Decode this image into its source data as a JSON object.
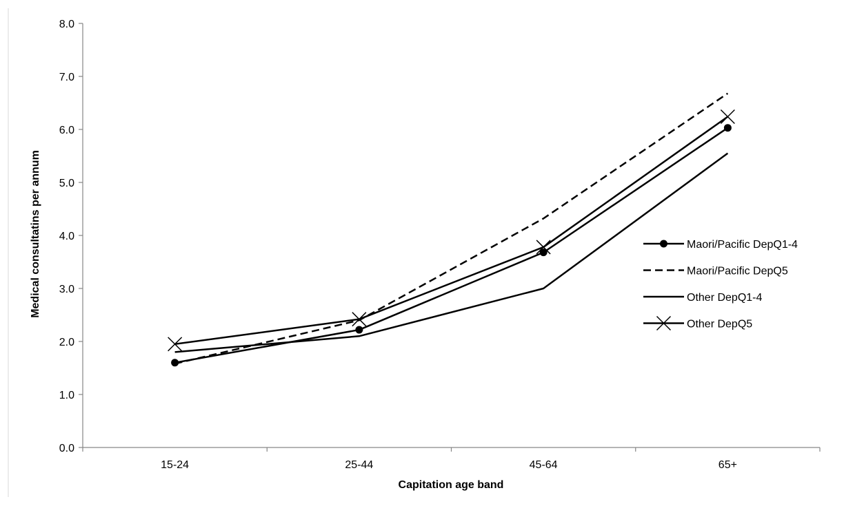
{
  "chart_data": {
    "type": "line",
    "title": "",
    "xlabel": "Capitation age band",
    "ylabel": "Medical consultatins per annum",
    "categories": [
      "15-24",
      "25-44",
      "45-64",
      "65+"
    ],
    "ylim": [
      0,
      8
    ],
    "yticks": [
      "0.0",
      "1.0",
      "2.0",
      "3.0",
      "4.0",
      "5.0",
      "6.0",
      "7.0",
      "8.0"
    ],
    "grid": false,
    "legend_position": "right",
    "series": [
      {
        "name": "Maori/Pacific DepQ1-4",
        "values": [
          1.6,
          2.22,
          3.68,
          6.03
        ],
        "line_style": "solid",
        "marker": "circle",
        "color": "#000000"
      },
      {
        "name": "Maori/Pacific DepQ5",
        "values": [
          1.58,
          2.4,
          4.32,
          6.68
        ],
        "line_style": "dashed",
        "marker": "none",
        "color": "#000000"
      },
      {
        "name": "Other DepQ1-4",
        "values": [
          1.8,
          2.1,
          3.0,
          5.55
        ],
        "line_style": "solid",
        "marker": "none",
        "color": "#000000"
      },
      {
        "name": "Other DepQ5",
        "values": [
          1.95,
          2.42,
          3.78,
          6.24
        ],
        "line_style": "solid",
        "marker": "x",
        "color": "#000000"
      }
    ]
  }
}
